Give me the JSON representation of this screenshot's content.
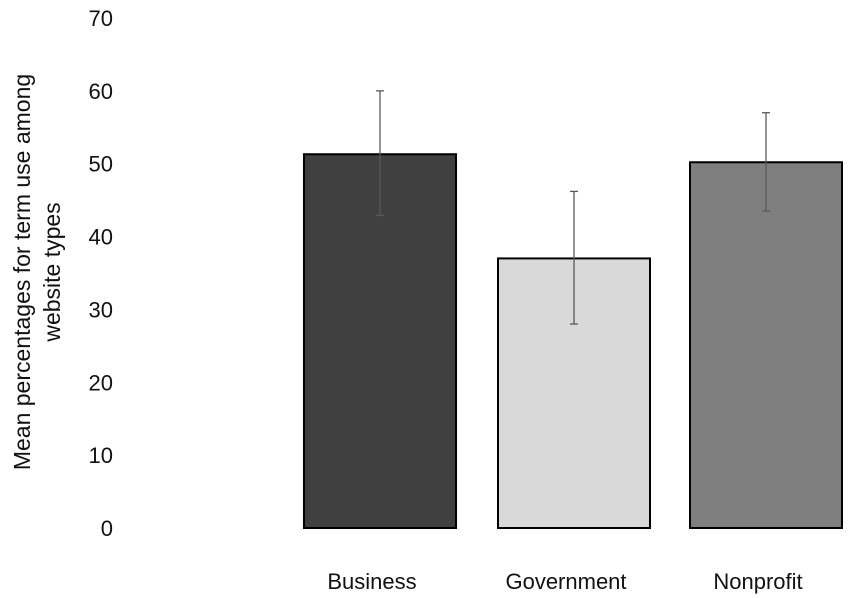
{
  "chart_data": {
    "type": "bar",
    "title": "",
    "xlabel": "",
    "ylabel_lines": [
      "Mean percentages for term use among",
      "website types"
    ],
    "categories": [
      "Business",
      "Government",
      "Nonprofit"
    ],
    "series": [
      {
        "values": [
          51.3,
          37.0,
          50.2
        ],
        "error_low": [
          42.9,
          28.0,
          43.5
        ],
        "error_high": [
          60.0,
          46.2,
          57.0
        ],
        "colors": [
          "#404040",
          "#d9d9d9",
          "#7f7f7f"
        ]
      }
    ],
    "ylim": [
      0,
      70
    ],
    "yticks": [
      0,
      10,
      20,
      30,
      40,
      50,
      60,
      70
    ],
    "grid": false,
    "legend": "none"
  }
}
